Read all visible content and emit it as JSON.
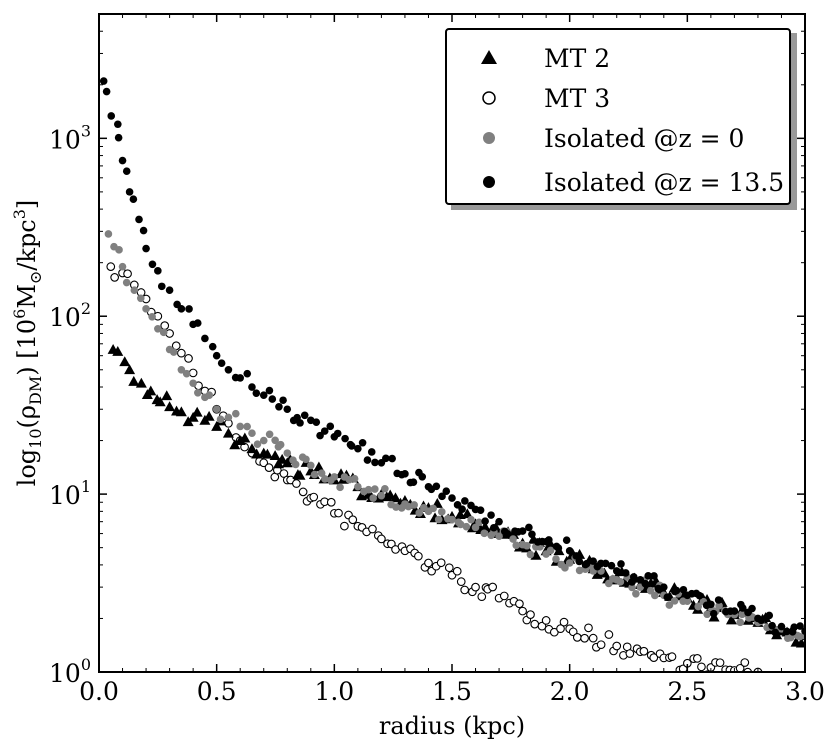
{
  "chart_data": {
    "type": "scatter",
    "title": "",
    "xlabel": "radius (kpc)",
    "ylabel": "log10(ρDM) [10^6 M⊙/kpc^3]",
    "xlim": [
      0.0,
      3.0
    ],
    "ylim": [
      1.0,
      5000.0
    ],
    "yscale": "log",
    "xticks": [
      "0.0",
      "0.5",
      "1.0",
      "1.5",
      "2.0",
      "2.5",
      "3.0"
    ],
    "yticks": [
      {
        "base": "10",
        "exp": "0",
        "value": 1
      },
      {
        "base": "10",
        "exp": "1",
        "value": 10
      },
      {
        "base": "10",
        "exp": "2",
        "value": 100
      },
      {
        "base": "10",
        "exp": "3",
        "value": 1000
      }
    ],
    "legend_position": "top-right",
    "series": [
      {
        "name": "MT 2",
        "marker": "triangle",
        "color": "#000000",
        "x": [
          0.06,
          0.13,
          0.18,
          0.22,
          0.26,
          0.3,
          0.35,
          0.4,
          0.45,
          0.5,
          0.55,
          0.6,
          0.65,
          0.7,
          0.8,
          0.9,
          1.0,
          1.1,
          1.2,
          1.3,
          1.4,
          1.5,
          1.6,
          1.7,
          1.8,
          1.9,
          2.0,
          2.1,
          2.2,
          2.3,
          2.4,
          2.5,
          2.6,
          2.7,
          2.8,
          2.9,
          3.0
        ],
        "y": [
          65,
          50,
          42,
          38,
          33,
          31,
          29,
          27,
          26,
          24,
          22,
          20,
          18,
          17,
          15,
          13.5,
          12,
          11,
          10,
          9.2,
          8.4,
          7.5,
          6.8,
          6.0,
          5.3,
          4.8,
          4.3,
          3.8,
          3.4,
          3.1,
          2.8,
          2.6,
          2.3,
          2.1,
          1.9,
          1.7,
          1.6
        ]
      },
      {
        "name": "MT 3",
        "marker": "open-circle",
        "color": "#000000",
        "x": [
          0.05,
          0.1,
          0.15,
          0.2,
          0.25,
          0.3,
          0.35,
          0.4,
          0.45,
          0.5,
          0.55,
          0.6,
          0.65,
          0.7,
          0.8,
          0.9,
          1.0,
          1.1,
          1.2,
          1.3,
          1.4,
          1.5,
          1.6,
          1.7,
          1.8,
          1.9,
          2.0,
          2.1,
          2.2,
          2.3,
          2.4,
          2.5,
          2.6,
          2.7,
          2.8
        ],
        "y": [
          190,
          175,
          150,
          125,
          100,
          80,
          62,
          48,
          38,
          30,
          25,
          20,
          17,
          15,
          12,
          9.5,
          7.8,
          6.6,
          5.6,
          4.8,
          4.1,
          3.5,
          3.0,
          2.6,
          2.2,
          1.95,
          1.75,
          1.55,
          1.4,
          1.3,
          1.2,
          1.12,
          1.06,
          1.02,
          1.0
        ]
      },
      {
        "name": "Isolated @z = 0",
        "marker": "filled-circle",
        "color": "#808080",
        "x": [
          0.04,
          0.1,
          0.15,
          0.2,
          0.25,
          0.3,
          0.35,
          0.4,
          0.45,
          0.5,
          0.55,
          0.6,
          0.65,
          0.7,
          0.8,
          0.9,
          1.0,
          1.1,
          1.2,
          1.3,
          1.4,
          1.5,
          1.6,
          1.7,
          1.8,
          1.9,
          2.0,
          2.1,
          2.2,
          2.3,
          2.4,
          2.5,
          2.6,
          2.7,
          2.8,
          2.9,
          3.0
        ],
        "y": [
          290,
          190,
          140,
          110,
          85,
          65,
          50,
          42,
          35,
          30,
          27,
          24,
          22,
          20,
          17,
          14.5,
          12.5,
          11,
          9.8,
          8.8,
          8.0,
          7.2,
          6.5,
          5.8,
          5.2,
          4.6,
          4.1,
          3.7,
          3.3,
          3.0,
          2.7,
          2.5,
          2.3,
          2.1,
          1.9,
          1.75,
          1.6
        ]
      },
      {
        "name": "Isolated @z = 13.5",
        "marker": "filled-circle",
        "color": "#000000",
        "x": [
          0.02,
          0.08,
          0.1,
          0.13,
          0.17,
          0.2,
          0.25,
          0.3,
          0.35,
          0.4,
          0.45,
          0.5,
          0.55,
          0.6,
          0.65,
          0.7,
          0.8,
          0.9,
          1.0,
          1.1,
          1.2,
          1.3,
          1.4,
          1.5,
          1.6,
          1.7,
          1.8,
          1.9,
          2.0,
          2.1,
          2.2,
          2.3,
          2.4,
          2.5,
          2.6,
          2.7,
          2.8,
          2.9,
          3.0
        ],
        "y": [
          2100,
          1200,
          750,
          500,
          350,
          240,
          180,
          140,
          110,
          90,
          75,
          60,
          50,
          45,
          40,
          36,
          30,
          26,
          21,
          18,
          15,
          13,
          11,
          9.5,
          8.2,
          7.0,
          6.2,
          5.4,
          4.8,
          4.2,
          3.7,
          3.3,
          3.0,
          2.7,
          2.4,
          2.2,
          2.0,
          1.8,
          1.7
        ]
      }
    ]
  }
}
